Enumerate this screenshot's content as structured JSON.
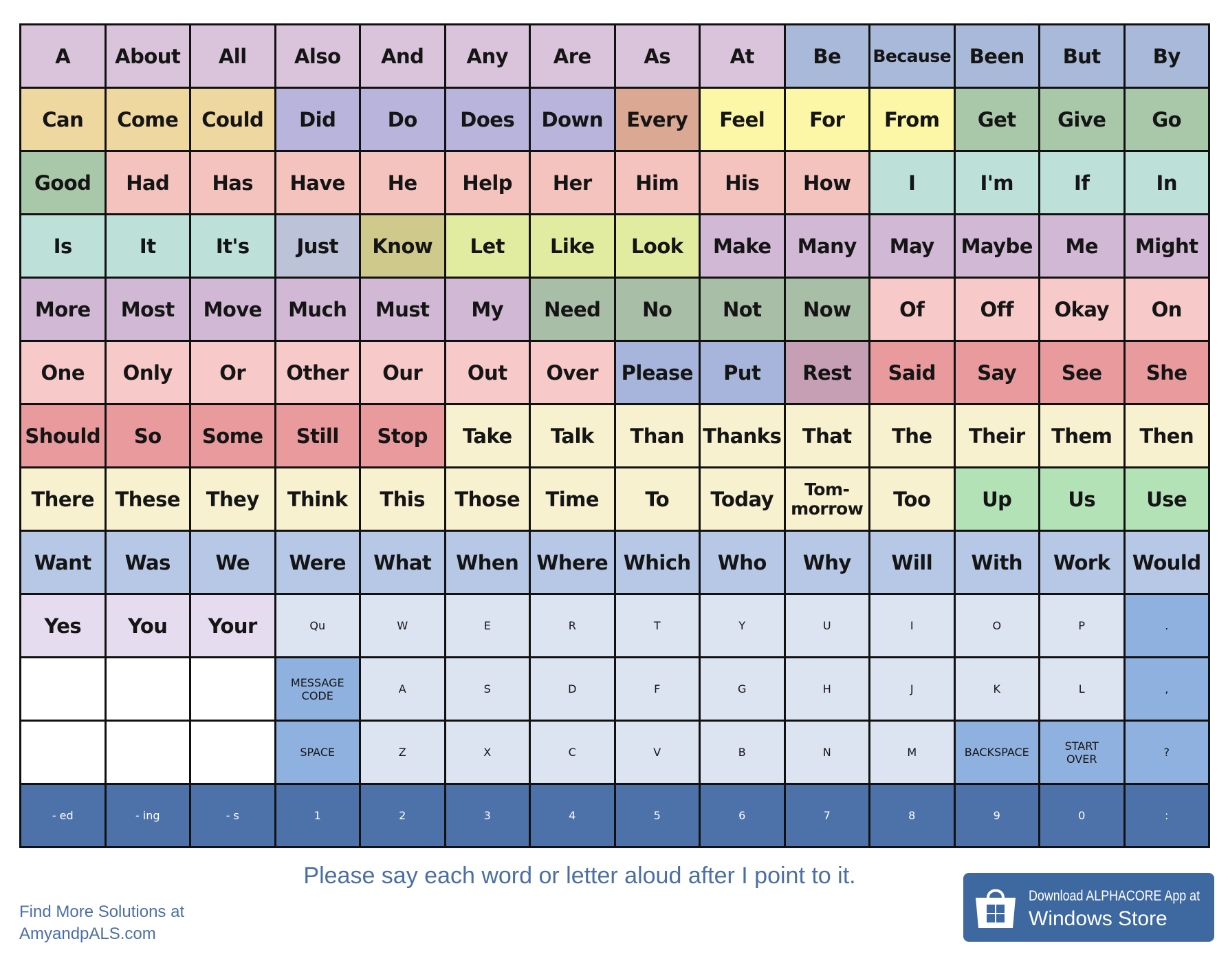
{
  "board": {
    "rows": [
      [
        "A",
        "About",
        "All",
        "Also",
        "And",
        "Any",
        "Are",
        "As",
        "At",
        "Be",
        "Because",
        "Been",
        "But",
        "By"
      ],
      [
        "Can",
        "Come",
        "Could",
        "Did",
        "Do",
        "Does",
        "Down",
        "Every",
        "Feel",
        "For",
        "From",
        "Get",
        "Give",
        "Go"
      ],
      [
        "Good",
        "Had",
        "Has",
        "Have",
        "He",
        "Help",
        "Her",
        "Him",
        "His",
        "How",
        "I",
        "I'm",
        "If",
        "In"
      ],
      [
        "Is",
        "It",
        "It's",
        "Just",
        "Know",
        "Let",
        "Like",
        "Look",
        "Make",
        "Many",
        "May",
        "Maybe",
        "Me",
        "Might"
      ],
      [
        "More",
        "Most",
        "Move",
        "Much",
        "Must",
        "My",
        "Need",
        "No",
        "Not",
        "Now",
        "Of",
        "Off",
        "Okay",
        "On"
      ],
      [
        "One",
        "Only",
        "Or",
        "Other",
        "Our",
        "Out",
        "Over",
        "Please",
        "Put",
        "Rest",
        "Said",
        "Say",
        "See",
        "She"
      ],
      [
        "Should",
        "So",
        "Some",
        "Still",
        "Stop",
        "Take",
        "Talk",
        "Than",
        "Thanks",
        "That",
        "The",
        "Their",
        "Them",
        "Then"
      ],
      [
        "There",
        "These",
        "They",
        "Think",
        "This",
        "Those",
        "Time",
        "To",
        "Today",
        "Tom-\nmorrow",
        "Too",
        "Up",
        "Us",
        "Use"
      ],
      [
        "Want",
        "Was",
        "We",
        "Were",
        "What",
        "When",
        "Where",
        "Which",
        "Who",
        "Why",
        "Will",
        "With",
        "Work",
        "Would"
      ],
      [
        "Yes",
        "You",
        "Your",
        "Qu",
        "W",
        "E",
        "R",
        "T",
        "Y",
        "U",
        "I",
        "O",
        "P",
        "."
      ],
      [
        "MESSAGE\nCODE",
        "A",
        "S",
        "D",
        "F",
        "G",
        "H",
        "J",
        "K",
        "L",
        ","
      ],
      [
        "SPACE",
        "Z",
        "X",
        "C",
        "V",
        "B",
        "N",
        "M",
        "BACKSPACE",
        "START\nOVER",
        "?"
      ],
      [
        "- ed",
        "- ing",
        "- s",
        "1",
        "2",
        "3",
        "4",
        "5",
        "6",
        "7",
        "8",
        "9",
        "0",
        ":"
      ]
    ]
  },
  "footer": {
    "instruction": "Please say each word or letter aloud after I point to it.",
    "site_lines": [
      "Find More Solutions at",
      "AmyandpALS.com"
    ],
    "badge": {
      "line1": "Download ALPHACORE App at",
      "line2": "Windows Store"
    }
  }
}
